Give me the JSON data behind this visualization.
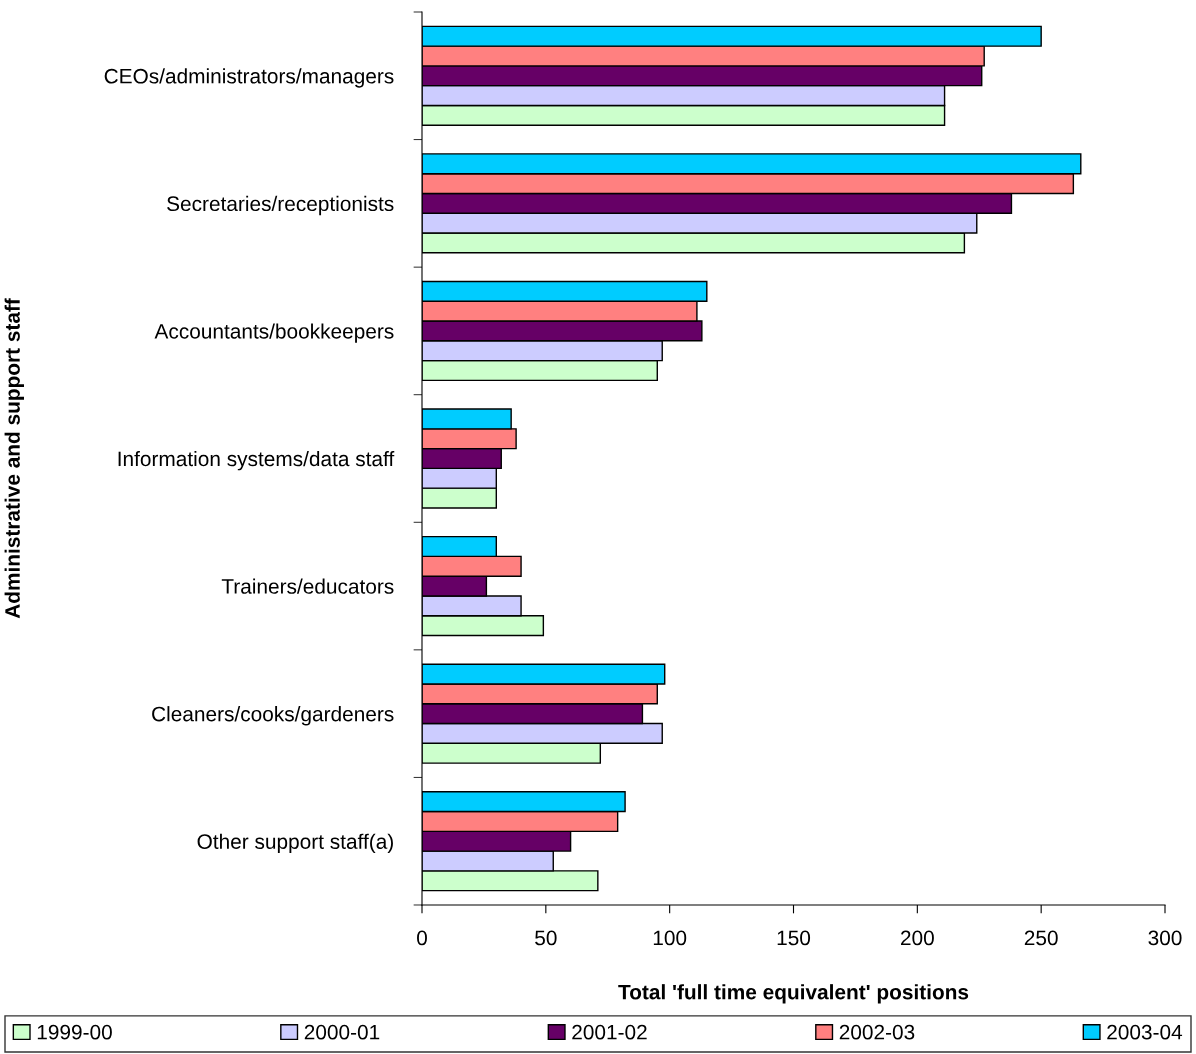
{
  "chart_data": {
    "type": "bar",
    "orientation": "horizontal",
    "xlabel": "Total 'full time equivalent' positions",
    "ylabel": "Administrative and support staff",
    "categories": [
      "CEOs/administrators/managers",
      "Secretaries/receptionists",
      "Accountants/bookkeepers",
      "Information systems/data staff",
      "Trainers/educators",
      "Cleaners/cooks/gardeners",
      "Other support staff(a)"
    ],
    "series": [
      {
        "name": "1999-00",
        "color": "#ccffcc",
        "values": [
          211,
          219,
          95,
          30,
          49,
          72,
          71
        ]
      },
      {
        "name": "2000-01",
        "color": "#ccccff",
        "values": [
          211,
          224,
          97,
          30,
          40,
          97,
          53
        ]
      },
      {
        "name": "2001-02",
        "color": "#660066",
        "values": [
          226,
          238,
          113,
          32,
          26,
          89,
          60
        ]
      },
      {
        "name": "2002-03",
        "color": "#ff8080",
        "values": [
          227,
          263,
          111,
          38,
          40,
          95,
          79
        ]
      },
      {
        "name": "2003-04",
        "color": "#00ccff",
        "values": [
          250,
          266,
          115,
          36,
          30,
          98,
          82
        ]
      }
    ],
    "xlim": [
      0,
      300
    ],
    "xticks": [
      0,
      50,
      100,
      150,
      200,
      250,
      300
    ],
    "grid": false,
    "legend": "bottom"
  }
}
